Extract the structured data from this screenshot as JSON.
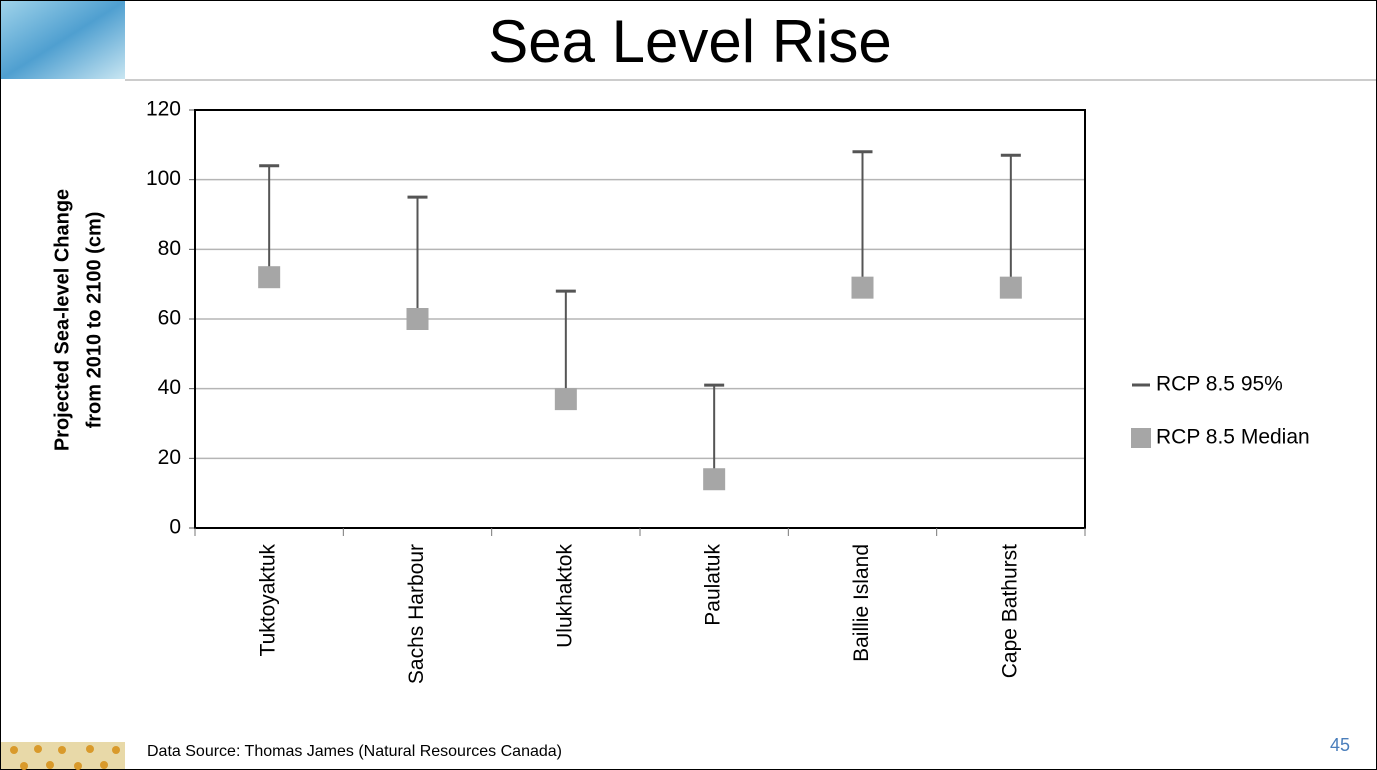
{
  "chart_data": {
    "type": "errorbar",
    "title": "Sea Level Rise",
    "y_label": [
      "Projected Sea-level Change",
      "from 2010 to 2100 (cm)"
    ],
    "categories": [
      "Tuktoyaktuk",
      "Sachs Harbour",
      "Ulukhaktok",
      "Paulatuk",
      "Baillie Island",
      "Cape Bathurst"
    ],
    "series": [
      {
        "name": "RCP 8.5 95%",
        "color": "#555555",
        "values": [
          104,
          95,
          68,
          41,
          108,
          107
        ]
      },
      {
        "name": "RCP 8.5 Median",
        "color": "#a6a6a6",
        "values": [
          72,
          60,
          37,
          14,
          69,
          69
        ]
      }
    ],
    "ylim": [
      0,
      120
    ],
    "yticks": [
      0,
      20,
      40,
      60,
      80,
      100,
      120
    ],
    "grid": true,
    "legend": "right",
    "source": "Data Source: Thomas James (Natural Resources Canada)",
    "slide_number": "45"
  }
}
